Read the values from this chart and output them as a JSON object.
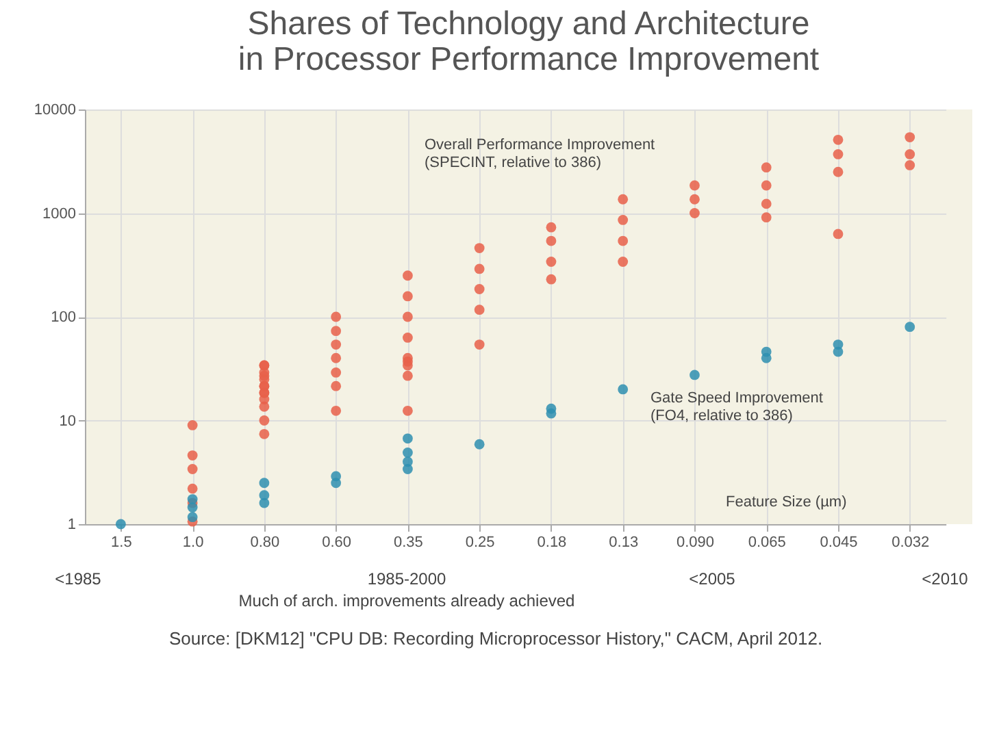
{
  "chart_data": {
    "type": "scatter",
    "title": [
      "Shares of Technology and Architecture",
      "in Processor Performance Improvement"
    ],
    "xlabel": "Feature Size (µm)",
    "categories": [
      "1.5",
      "1.0",
      "0.80",
      "0.60",
      "0.35",
      "0.25",
      "0.18",
      "0.13",
      "0.090",
      "0.065",
      "0.045",
      "0.032"
    ],
    "ylim": [
      1,
      10000
    ],
    "yticks": [
      1,
      10,
      100,
      1000,
      10000
    ],
    "log": "y",
    "grid": true,
    "legend": false,
    "marker": "circle",
    "series": [
      {
        "name": "Overall Performance Improvement\n(SPECINT, relative to 386)",
        "color": "#e8604a",
        "x": [
          "1.0",
          "1.0",
          "1.0",
          "1.0",
          "1.0",
          "1.0",
          "0.80",
          "0.80",
          "0.80",
          "0.80",
          "0.80",
          "0.80",
          "0.80",
          "0.80",
          "0.80",
          "0.80",
          "0.80",
          "0.80",
          "0.80",
          "0.60",
          "0.60",
          "0.60",
          "0.60",
          "0.60",
          "0.60",
          "0.60",
          "0.35",
          "0.35",
          "0.35",
          "0.35",
          "0.35",
          "0.35",
          "0.35",
          "0.35",
          "0.35",
          "0.25",
          "0.25",
          "0.25",
          "0.25",
          "0.25",
          "0.18",
          "0.18",
          "0.18",
          "0.18",
          "0.13",
          "0.13",
          "0.13",
          "0.13",
          "0.090",
          "0.090",
          "0.090",
          "0.065",
          "0.065",
          "0.065",
          "0.065",
          "0.045",
          "0.045",
          "0.045",
          "0.045",
          "0.032",
          "0.032",
          "0.032"
        ],
        "values": [
          9,
          4.6,
          3.4,
          2.2,
          1.6,
          1.06,
          29,
          21.5,
          16,
          10,
          7.4,
          34,
          25,
          18.5,
          27,
          18.5,
          34,
          21.5,
          13.6,
          100,
          73,
          54,
          40,
          29,
          21.5,
          12.4,
          37,
          12.4,
          250,
          158,
          100,
          63,
          40,
          27,
          34,
          460,
          290,
          185,
          117,
          54,
          730,
          540,
          340,
          230,
          1360,
          860,
          540,
          340,
          1850,
          1360,
          1000,
          2760,
          1850,
          1230,
          910,
          5100,
          3700,
          2500,
          630,
          5400,
          3700,
          2900
        ]
      },
      {
        "name": "Gate Speed Improvement\n(FO4, relative to 386)",
        "color": "#2e8fb0",
        "x": [
          "1.5",
          "1.0",
          "1.0",
          "1.0",
          "0.80",
          "0.80",
          "0.80",
          "0.60",
          "0.60",
          "0.35",
          "0.35",
          "0.35",
          "0.35",
          "0.25",
          "0.18",
          "0.18",
          "0.13",
          "0.090",
          "0.065",
          "0.065",
          "0.045",
          "0.045",
          "0.032"
        ],
        "values": [
          1,
          1.17,
          1.45,
          1.74,
          1.6,
          1.9,
          2.5,
          2.5,
          2.9,
          3.4,
          4,
          6.7,
          4.9,
          5.9,
          11.7,
          13,
          20,
          27.5,
          40,
          46,
          54,
          46,
          80
        ]
      }
    ],
    "annotations": [
      "<1985",
      "1985-2000",
      "<2005",
      "<2010",
      "Much of arch. improvements already achieved",
      "Source: [DKM12] \"CPU DB: Recording Microprocessor History,\" CACM, April 2012."
    ]
  }
}
